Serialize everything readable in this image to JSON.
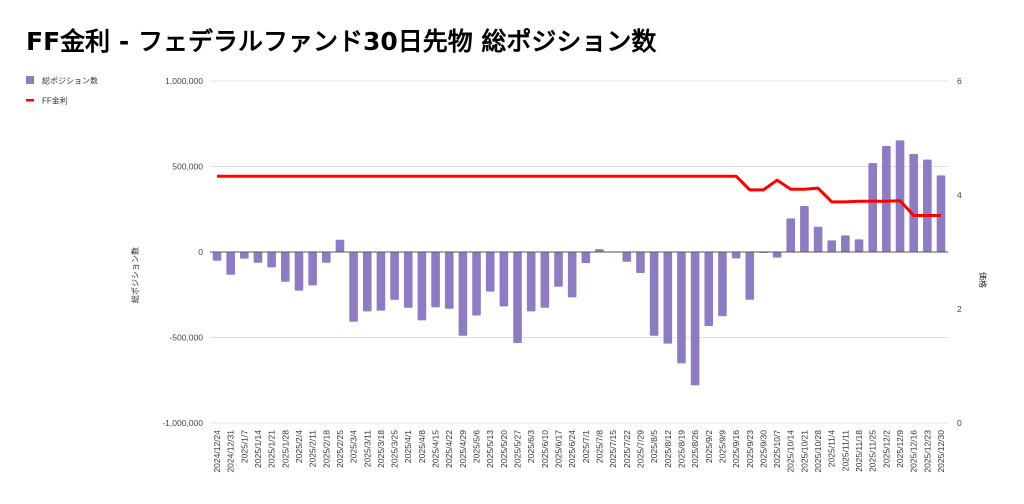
{
  "chart_data": {
    "type": "bar",
    "title": "FF金利 - フェデラルファンド30日先物 総ポジション数",
    "xlabel": "",
    "ylabel": "総ポジション数",
    "y2label": "価格",
    "ylim": [
      -1000000,
      1000000
    ],
    "y2lim": [
      0,
      6
    ],
    "yticks": [
      "1,000,000",
      "500,000",
      "0",
      "-500,000",
      "-1,000,000"
    ],
    "ytick_values": [
      1000000,
      500000,
      0,
      -500000,
      -1000000
    ],
    "y2ticks": [
      "6",
      "4",
      "2",
      "0"
    ],
    "y2tick_values": [
      6,
      4,
      2,
      0
    ],
    "grid": true,
    "legend_position": "top-left",
    "colors": {
      "bar": "#8e7cc3",
      "line": "#ff0000"
    },
    "categories": [
      "2024/12/24",
      "2024/12/31",
      "2025/1/7",
      "2025/1/14",
      "2025/1/21",
      "2025/1/28",
      "2025/2/4",
      "2025/2/11",
      "2025/2/18",
      "2025/2/25",
      "2025/3/4",
      "2025/3/11",
      "2025/3/18",
      "2025/3/25",
      "2025/4/1",
      "2025/4/8",
      "2025/4/15",
      "2025/4/22",
      "2025/4/29",
      "2025/5/6",
      "2025/5/13",
      "2025/5/20",
      "2025/5/27",
      "2025/6/3",
      "2025/6/10",
      "2025/6/17",
      "2025/6/24",
      "2025/7/1",
      "2025/7/8",
      "2025/7/15",
      "2025/7/22",
      "2025/7/29",
      "2025/8/5",
      "2025/8/12",
      "2025/8/19",
      "2025/8/26",
      "2025/9/2",
      "2025/9/9",
      "2025/9/16",
      "2025/9/23",
      "2025/9/30",
      "2025/10/7",
      "2025/10/14",
      "2025/10/21",
      "2025/10/28",
      "2025/11/4",
      "2025/11/11",
      "2025/11/18",
      "2025/11/25",
      "2025/12/2",
      "2025/12/9",
      "2025/12/16",
      "2025/12/23",
      "2025/12/30"
    ],
    "series": [
      {
        "name": "総ポジション数",
        "type": "bar",
        "axis": "left",
        "values": [
          -51000,
          -133000,
          -39000,
          -63000,
          -90000,
          -174000,
          -226000,
          -195000,
          -63000,
          72000,
          -408000,
          -347000,
          -343000,
          -280000,
          -326000,
          -400000,
          -324000,
          -332000,
          -490000,
          -371000,
          -232000,
          -318000,
          -532000,
          -347000,
          -326000,
          -203000,
          -265000,
          -64000,
          17000,
          0,
          -57000,
          -123000,
          -490000,
          -536000,
          -651000,
          -780000,
          -433000,
          -376000,
          -37000,
          -279000,
          -6000,
          -33000,
          197000,
          269000,
          148000,
          68000,
          97000,
          74000,
          520000,
          620000,
          653000,
          573000,
          540000,
          448000
        ]
      },
      {
        "name": "FF金利",
        "type": "line",
        "axis": "right",
        "values": [
          4.33,
          4.33,
          4.33,
          4.33,
          4.33,
          4.33,
          4.33,
          4.33,
          4.33,
          4.33,
          4.33,
          4.33,
          4.33,
          4.33,
          4.33,
          4.33,
          4.33,
          4.33,
          4.33,
          4.33,
          4.33,
          4.33,
          4.33,
          4.33,
          4.33,
          4.33,
          4.33,
          4.33,
          4.33,
          4.33,
          4.33,
          4.33,
          4.33,
          4.33,
          4.33,
          4.33,
          4.33,
          4.33,
          4.33,
          4.09,
          4.09,
          4.26,
          4.1,
          4.1,
          4.12,
          3.88,
          3.88,
          3.89,
          3.89,
          3.89,
          3.9,
          3.64,
          3.64,
          3.64
        ]
      }
    ]
  }
}
